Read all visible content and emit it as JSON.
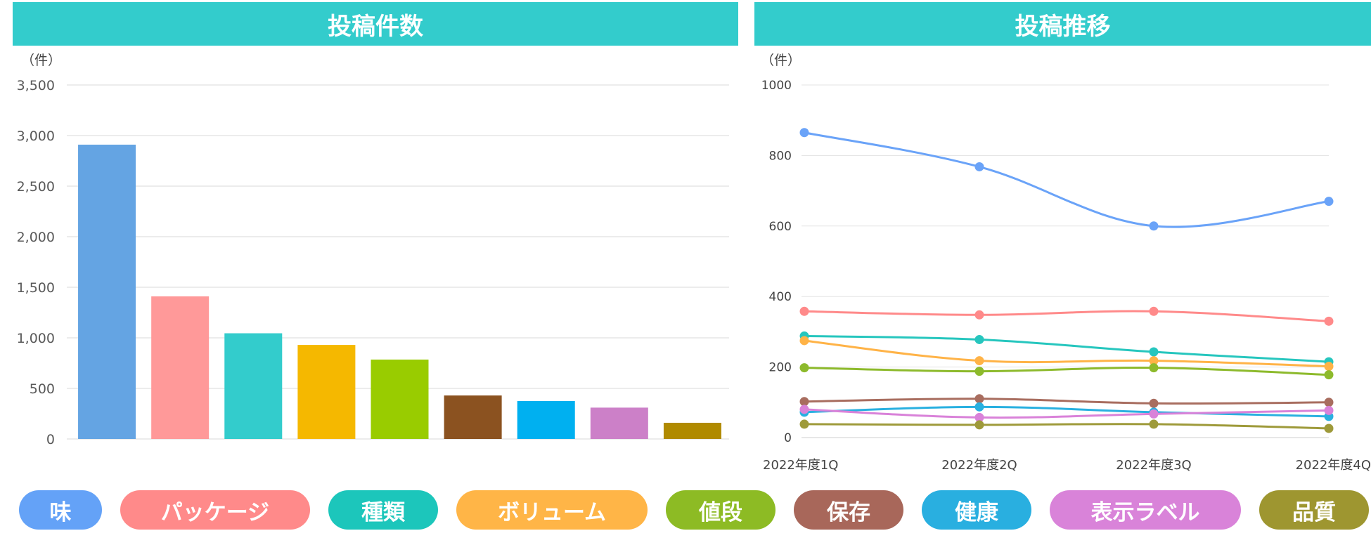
{
  "chart_data": [
    {
      "type": "bar",
      "title": "投稿件数",
      "unit_label": "（件）",
      "categories": [
        "味",
        "パッケージ",
        "種類",
        "ボリューム",
        "値段",
        "保存",
        "健康",
        "表示ラベル",
        "品質"
      ],
      "values": [
        2910,
        1410,
        1045,
        930,
        785,
        430,
        375,
        310,
        160
      ],
      "colors": [
        "#64a4e3",
        "#ff9999",
        "#33cccc",
        "#f5b800",
        "#99cc00",
        "#8b5220",
        "#00b0f0",
        "#cc80c8",
        "#b08a00"
      ],
      "ylim": [
        0,
        3500
      ],
      "yticks": [
        "0",
        "500",
        "1,000",
        "1,500",
        "2,000",
        "2,500",
        "3,000",
        "3,500"
      ],
      "ytick_values": [
        0,
        500,
        1000,
        1500,
        2000,
        2500,
        3000,
        3500
      ],
      "grid": true
    },
    {
      "type": "line",
      "title": "投稿推移",
      "unit_label": "（件）",
      "x": [
        "2022年度1Q",
        "2022年度2Q",
        "2022年度3Q",
        "2022年度4Q"
      ],
      "ylim": [
        0,
        1000
      ],
      "yticks": [
        "0",
        "200",
        "400",
        "600",
        "800",
        "1000"
      ],
      "ytick_values": [
        0,
        200,
        400,
        600,
        800,
        1000
      ],
      "grid": true,
      "series": [
        {
          "name": "味",
          "color": "#6aa3f8",
          "values": [
            865,
            768,
            600,
            670
          ]
        },
        {
          "name": "パッケージ",
          "color": "#ff8a8a",
          "values": [
            358,
            348,
            358,
            330
          ]
        },
        {
          "name": "種類",
          "color": "#26c6be",
          "values": [
            288,
            278,
            243,
            215
          ]
        },
        {
          "name": "ボリューム",
          "color": "#ffb347",
          "values": [
            275,
            218,
            218,
            202
          ]
        },
        {
          "name": "値段",
          "color": "#8dba2c",
          "values": [
            198,
            188,
            198,
            178
          ]
        },
        {
          "name": "保存",
          "color": "#a86d5f",
          "values": [
            102,
            110,
            97,
            100
          ]
        },
        {
          "name": "健康",
          "color": "#29b0e0",
          "values": [
            72,
            87,
            72,
            60
          ]
        },
        {
          "name": "表示ラベル",
          "color": "#d982d9",
          "values": [
            80,
            57,
            67,
            77
          ]
        },
        {
          "name": "品質",
          "color": "#9e9a3a",
          "values": [
            38,
            36,
            38,
            26
          ]
        }
      ]
    }
  ],
  "legend": [
    {
      "label": "味",
      "color": "#64a2f7"
    },
    {
      "label": "パッケージ",
      "color": "#ff8a8a"
    },
    {
      "label": "種類",
      "color": "#1cc6bb"
    },
    {
      "label": "ボリューム",
      "color": "#ffb547"
    },
    {
      "label": "値段",
      "color": "#8dbb24"
    },
    {
      "label": "保存",
      "color": "#a8675a"
    },
    {
      "label": "健康",
      "color": "#29afe0"
    },
    {
      "label": "表示ラベル",
      "color": "#d983d9"
    },
    {
      "label": "品質",
      "color": "#9e9630"
    }
  ]
}
